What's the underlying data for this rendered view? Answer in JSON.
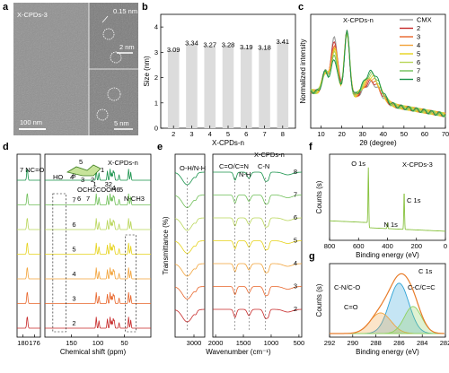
{
  "panel_letters": [
    "a",
    "b",
    "c",
    "d",
    "e",
    "f",
    "g"
  ],
  "panel_a": {
    "sample_label": "X-CPDs-3",
    "lattice_label": "0.15 nm",
    "scale_main": "100 nm",
    "scale_inset1": "2 nm",
    "scale_inset2": "5 nm"
  },
  "colors": {
    "CMX": "#9a9a9a",
    "s2": "#c62828",
    "s3": "#e8652a",
    "s4": "#f2a33a",
    "s5": "#e6d21a",
    "s6": "#b9d65a",
    "s7": "#6fbf58",
    "s8": "#17924a",
    "xps_survey": "#88c23f",
    "c_nco": "#2ea3d6",
    "c_cc": "#8fd15f",
    "c_co": "#f0a23c",
    "c_env": "#e87c2a"
  },
  "chart_data": [
    {
      "panel": "b",
      "type": "bar",
      "ylabel": "Size (nm)",
      "xlabel": "X-CPDs-n",
      "categories": [
        "2",
        "3",
        "4",
        "5",
        "6",
        "7",
        "8"
      ],
      "values": [
        3.09,
        3.34,
        3.27,
        3.28,
        3.19,
        3.18,
        3.41
      ],
      "value_labels": [
        "3.09",
        "3.34",
        "3.27",
        "3.28",
        "3.19",
        "3.18",
        "3.41"
      ],
      "ylim": [
        0,
        4.5
      ],
      "yticks": [
        "0",
        "1",
        "2",
        "3",
        "4"
      ]
    },
    {
      "panel": "c",
      "type": "line",
      "xlabel": "2θ (degree)",
      "ylabel": "Normalized intensity",
      "xlim": [
        5,
        70
      ],
      "xticks": [
        "10",
        "20",
        "30",
        "40",
        "50",
        "60",
        "70"
      ],
      "legend_title": "X-CPDs-n",
      "legend": [
        "CMX",
        "2",
        "3",
        "4",
        "5",
        "6",
        "7",
        "8"
      ],
      "peaks_deg": [
        16.5,
        22.5,
        34.5
      ]
    },
    {
      "panel": "d",
      "type": "line",
      "xlabel": "Chemical shift (ppm)",
      "xticks_left": [
        "180",
        "176"
      ],
      "xticks_right": [
        "150",
        "100",
        "50"
      ],
      "series_labels": [
        "8",
        "7",
        "6",
        "5",
        "4",
        "3",
        "2"
      ],
      "annotations": [
        "7 NC=O",
        "N-CH3",
        "1",
        "32",
        "4",
        "6",
        "5",
        "X-CPDs-n"
      ],
      "structure_labels": [
        "HO",
        "5",
        "4",
        "3",
        "2",
        "1",
        "6",
        "7",
        "OCH2COOH"
      ]
    },
    {
      "panel": "e",
      "type": "line",
      "xlabel": "Wavenumber (cm⁻¹)",
      "ylabel": "Transmittance (%)",
      "xticks_left": [
        "3000"
      ],
      "xticks_right": [
        "2000",
        "1500",
        "1000",
        "500"
      ],
      "series_labels": [
        "8",
        "7",
        "6",
        "5",
        "4",
        "3",
        "2"
      ],
      "annotations": [
        "O-H/N-H",
        "C=O/C=N",
        "N-H",
        "C-N",
        "X-CPDs-n"
      ]
    },
    {
      "panel": "f",
      "type": "line",
      "xlabel": "Binding energy (eV)",
      "ylabel": "Counts (s)",
      "xlim": [
        800,
        0
      ],
      "xticks": [
        "800",
        "600",
        "400",
        "200",
        "0"
      ],
      "peaks": [
        {
          "label": "O 1s",
          "ev": 532
        },
        {
          "label": "N 1s",
          "ev": 400
        },
        {
          "label": "C 1s",
          "ev": 285
        }
      ],
      "sample_label": "X-CPDs-3"
    },
    {
      "panel": "g",
      "type": "line",
      "xlabel": "Binding energy (eV)",
      "ylabel": "Counts (s)",
      "xlim": [
        292,
        282
      ],
      "xticks": [
        "292",
        "290",
        "288",
        "286",
        "284",
        "282"
      ],
      "title": "C 1s",
      "components": [
        {
          "label": "C-N/C-O",
          "center": 286.0
        },
        {
          "label": "C=O",
          "center": 287.6
        },
        {
          "label": "C-C/C=C",
          "center": 284.8
        }
      ]
    }
  ]
}
